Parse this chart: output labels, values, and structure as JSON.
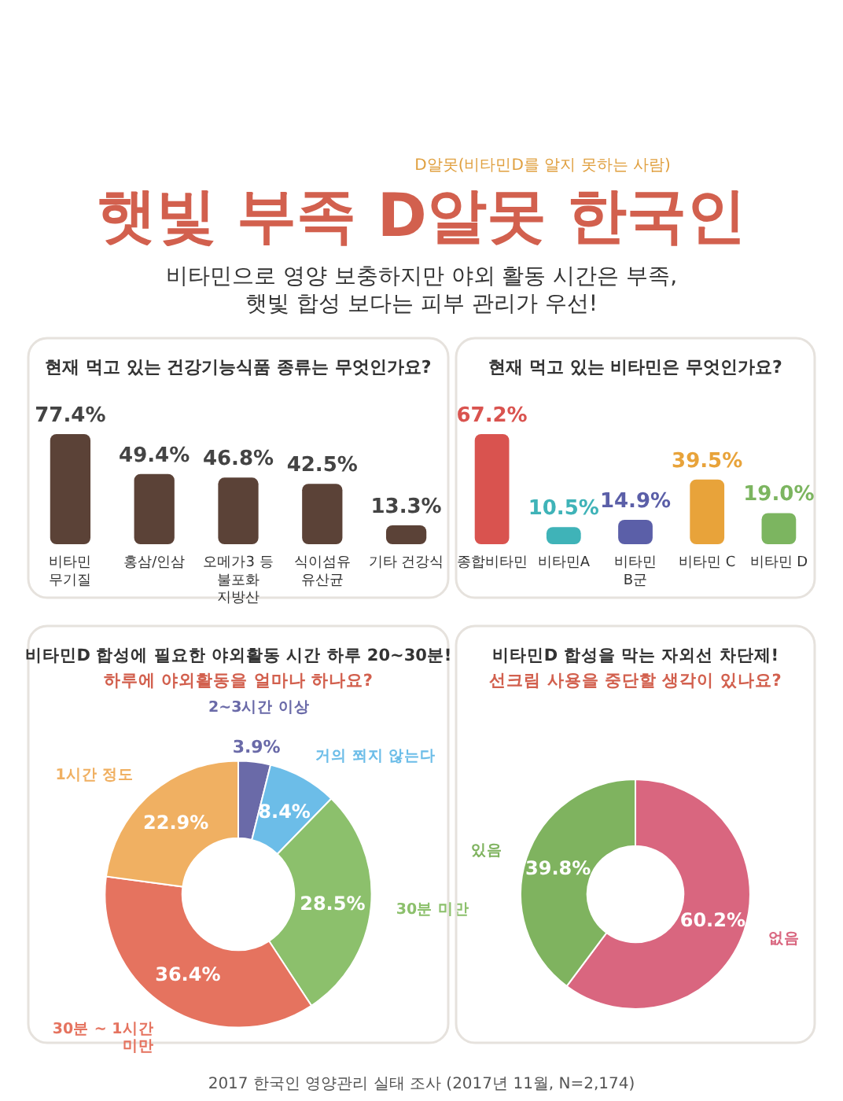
{
  "chart_data": [
    {
      "type": "other",
      "title": "햇빛 부족 D알못 한국인",
      "subtitle": "비타민으로 영양 보충하지만 야외 활동 시간은 부족, 햇빛 합성 보다는 피부 관리가 우선!",
      "annotations": [
        "D알못(비타민D를 알지 못하는 사람)",
        "2017 한국인 영양관리 실태 조사 (2017년 11월, N=2,174)"
      ]
    },
    {
      "type": "bar",
      "title": "현재 먹고 있는 건강기능식품 종류는 무엇인가요?",
      "categories": [
        "비타민 무기질",
        "홍삼/인삼",
        "오메가3 등 불포화 지방산",
        "식이섬유 유산균",
        "기타 건강식"
      ],
      "values": [
        77.4,
        49.4,
        46.8,
        42.5,
        13.3
      ],
      "value_labels": [
        "77.4%",
        "49.4%",
        "46.8%",
        "42.5%",
        "13.3%"
      ],
      "color": "#5b4237"
    },
    {
      "type": "bar",
      "title": "현재 먹고 있는 비타민은 무엇인가요?",
      "categories": [
        "종합비타민",
        "비타민A",
        "비타민 B군",
        "비타민 C",
        "비타민 D"
      ],
      "values": [
        67.2,
        10.5,
        14.9,
        39.5,
        19.0
      ],
      "value_labels": [
        "67.2%",
        "10.5%",
        "14.9%",
        "39.5%",
        "19.0%"
      ],
      "colors": [
        "#d9534f",
        "#3fb3b8",
        "#5b5fa8",
        "#e8a33a",
        "#7cb560"
      ]
    },
    {
      "type": "donut",
      "title": "비타민D 합성에 필요한 야외활동 시간 하루 20~30분!",
      "subtitle": "하루에 야외활동을 얼마나 하나요?",
      "categories": [
        "2~3시간 이상",
        "거의 쬐지 않는다",
        "30분 미만",
        "30분 ~ 1시간 미만",
        "1시간 정도"
      ],
      "values": [
        3.9,
        8.4,
        28.5,
        36.4,
        22.9
      ],
      "value_labels": [
        "3.9%",
        "8.4%",
        "28.5%",
        "36.4%",
        "22.9%"
      ],
      "colors": [
        "#6a6aa8",
        "#6cbde8",
        "#8cc06c",
        "#e5735f",
        "#f0b062"
      ]
    },
    {
      "type": "donut",
      "title": "비타민D 합성을 막는 자외선 차단제!",
      "subtitle": "선크림 사용을 중단할 생각이 있나요?",
      "categories": [
        "없음",
        "있음"
      ],
      "values": [
        60.2,
        39.8
      ],
      "value_labels": [
        "60.2%",
        "39.8%"
      ],
      "colors": [
        "#d9667f",
        "#7fb35f"
      ]
    }
  ]
}
